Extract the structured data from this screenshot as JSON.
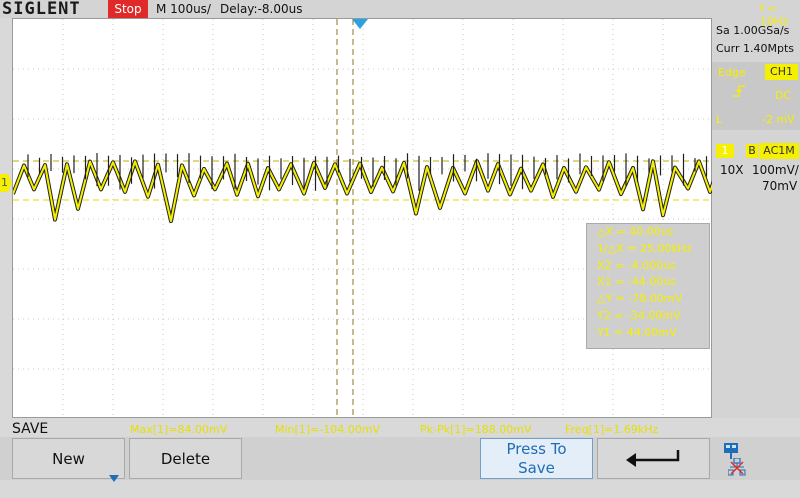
{
  "header": {
    "logo": "SIGLENT",
    "run_state": "Stop",
    "timebase": "M 100us/",
    "delay": "Delay:-8.00us"
  },
  "right_panel": {
    "trigger_freq": "f < 10Hz",
    "sample_rate": "Sa 1.00GSa/s",
    "memory": "Curr 1.40Mpts",
    "trigger": {
      "type": "Edge",
      "source": "CH1",
      "coupling": "DC",
      "level_label": "L",
      "level": "-2 mV"
    },
    "channel": {
      "number": "1",
      "bw_limit": "B",
      "coupling": "AC1M",
      "probe": "10X",
      "volts_per_div": "100mV/",
      "offset": "70mV"
    }
  },
  "cursor_measure": {
    "delta_x": "△X = 40.00us",
    "inv_delta_x": "1/△X = 25.00kHz",
    "x2": "X2 = -4.000us",
    "x1": "X1 = -44.00us",
    "delta_y": "△Y = -78.00mV",
    "y2": "Y2 = -34.00mV",
    "y1": "Y1 = 44.00mV"
  },
  "measurements": {
    "max": "Max[1]=84.00mV",
    "min": "Min[1]=-104.00mV",
    "pk_pk": "Pk-Pk[1]=188.00mV",
    "freq": "Freq[1]=1.69kHz"
  },
  "menu": {
    "title": "SAVE",
    "new_label": "New",
    "delete_label": "Delete",
    "press_line1": "Press To",
    "press_line2": "Save"
  },
  "markers": {
    "channel_marker": "1"
  },
  "colors": {
    "trace": "#f5f000",
    "run_state_bg": "#e02a2a",
    "trigger_marker": "#29a3df",
    "press_to_save_text": "#1e6db8"
  },
  "icons": {
    "back": "return-arrow-icon",
    "usb": "usb-icon",
    "lan": "lan-disconnected-icon"
  }
}
